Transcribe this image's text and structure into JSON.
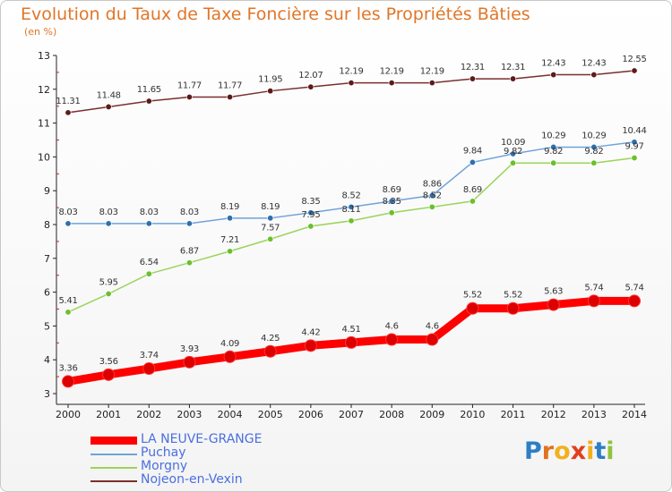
{
  "title": "Evolution du Taux de Taxe Foncière sur les Propriétés Bâties",
  "unit": "(en %)",
  "logo": {
    "letters": [
      "P",
      "r",
      "o",
      "x",
      "i",
      "t",
      "i"
    ],
    "colors": [
      "#2d7ec4",
      "#e0731f",
      "#f2b01e",
      "#e0401f",
      "#f2b01e",
      "#2d7ec4",
      "#8fc33c"
    ]
  },
  "chart_data": {
    "type": "line",
    "title": "Evolution du Taux de Taxe Foncière sur les Propriétés Bâties",
    "ylabel": "(en %)",
    "xlabel": "",
    "x": [
      "2000",
      "2001",
      "2002",
      "2003",
      "2004",
      "2005",
      "2006",
      "2007",
      "2008",
      "2009",
      "2010",
      "2011",
      "2012",
      "2013",
      "2014"
    ],
    "ylim": [
      3,
      13
    ],
    "yticks": [
      "3",
      "4",
      "5",
      "6",
      "7",
      "8",
      "9",
      "10",
      "11",
      "12",
      "13"
    ],
    "series": [
      {
        "name": "Nojeon-en-Vexin",
        "color": "#7b2e2e",
        "marker": "#5e1a1a",
        "values": [
          11.31,
          11.48,
          11.65,
          11.77,
          11.77,
          11.95,
          12.07,
          12.19,
          12.19,
          12.19,
          12.31,
          12.31,
          12.43,
          12.43,
          12.55
        ],
        "labels": [
          "11.31",
          "11.48",
          "11.65",
          "11.77",
          "11.77",
          "11.95",
          "12.07",
          "12.19",
          "12.19",
          "12.19",
          "12.31",
          "12.31",
          "12.43",
          "12.43",
          "12.55"
        ]
      },
      {
        "name": "Puchay",
        "color": "#6fa3d8",
        "marker": "#2f6fad",
        "values": [
          8.03,
          8.03,
          8.03,
          8.03,
          8.19,
          8.19,
          8.35,
          8.52,
          8.69,
          8.86,
          9.84,
          10.09,
          10.29,
          10.29,
          10.44
        ],
        "labels": [
          "8.03",
          "8.03",
          "8.03",
          "8.03",
          "8.19",
          "8.19",
          "8.35",
          "8.52",
          "8.69",
          "8.86",
          "9.84",
          "10.09",
          "10.29",
          "10.29",
          "10.44"
        ]
      },
      {
        "name": "Morgny",
        "color": "#9bd45a",
        "marker": "#6cbf2c",
        "values": [
          5.41,
          5.95,
          6.54,
          6.87,
          7.21,
          7.57,
          7.95,
          8.11,
          8.35,
          8.52,
          8.69,
          9.82,
          9.82,
          9.82,
          9.97
        ],
        "labels": [
          "5.41",
          "5.95",
          "6.54",
          "6.87",
          "7.21",
          "7.57",
          "7.95",
          "8.11",
          "8.35",
          "8.52",
          "8.69",
          "9.82",
          "9.82",
          "9.82",
          "9.97"
        ]
      },
      {
        "name": "LA NEUVE-GRANGE",
        "color": "#ff0000",
        "marker": "#dd0000",
        "values": [
          3.36,
          3.56,
          3.74,
          3.93,
          4.09,
          4.25,
          4.42,
          4.51,
          4.6,
          4.6,
          5.52,
          5.52,
          5.63,
          5.74,
          5.74
        ],
        "labels": [
          "3.36",
          "3.56",
          "3.74",
          "3.93",
          "4.09",
          "4.25",
          "4.42",
          "4.51",
          "4.6",
          "4.6",
          "5.52",
          "5.52",
          "5.63",
          "5.74",
          "5.74"
        ]
      }
    ],
    "legend": [
      {
        "name": "LA NEUVE-GRANGE",
        "color": "#ff0000"
      },
      {
        "name": "Puchay",
        "color": "#6fa3d8"
      },
      {
        "name": "Morgny",
        "color": "#9bd45a"
      },
      {
        "name": "Nojeon-en-Vexin",
        "color": "#7b2e2e"
      }
    ],
    "legend_position": "bottom-left"
  }
}
